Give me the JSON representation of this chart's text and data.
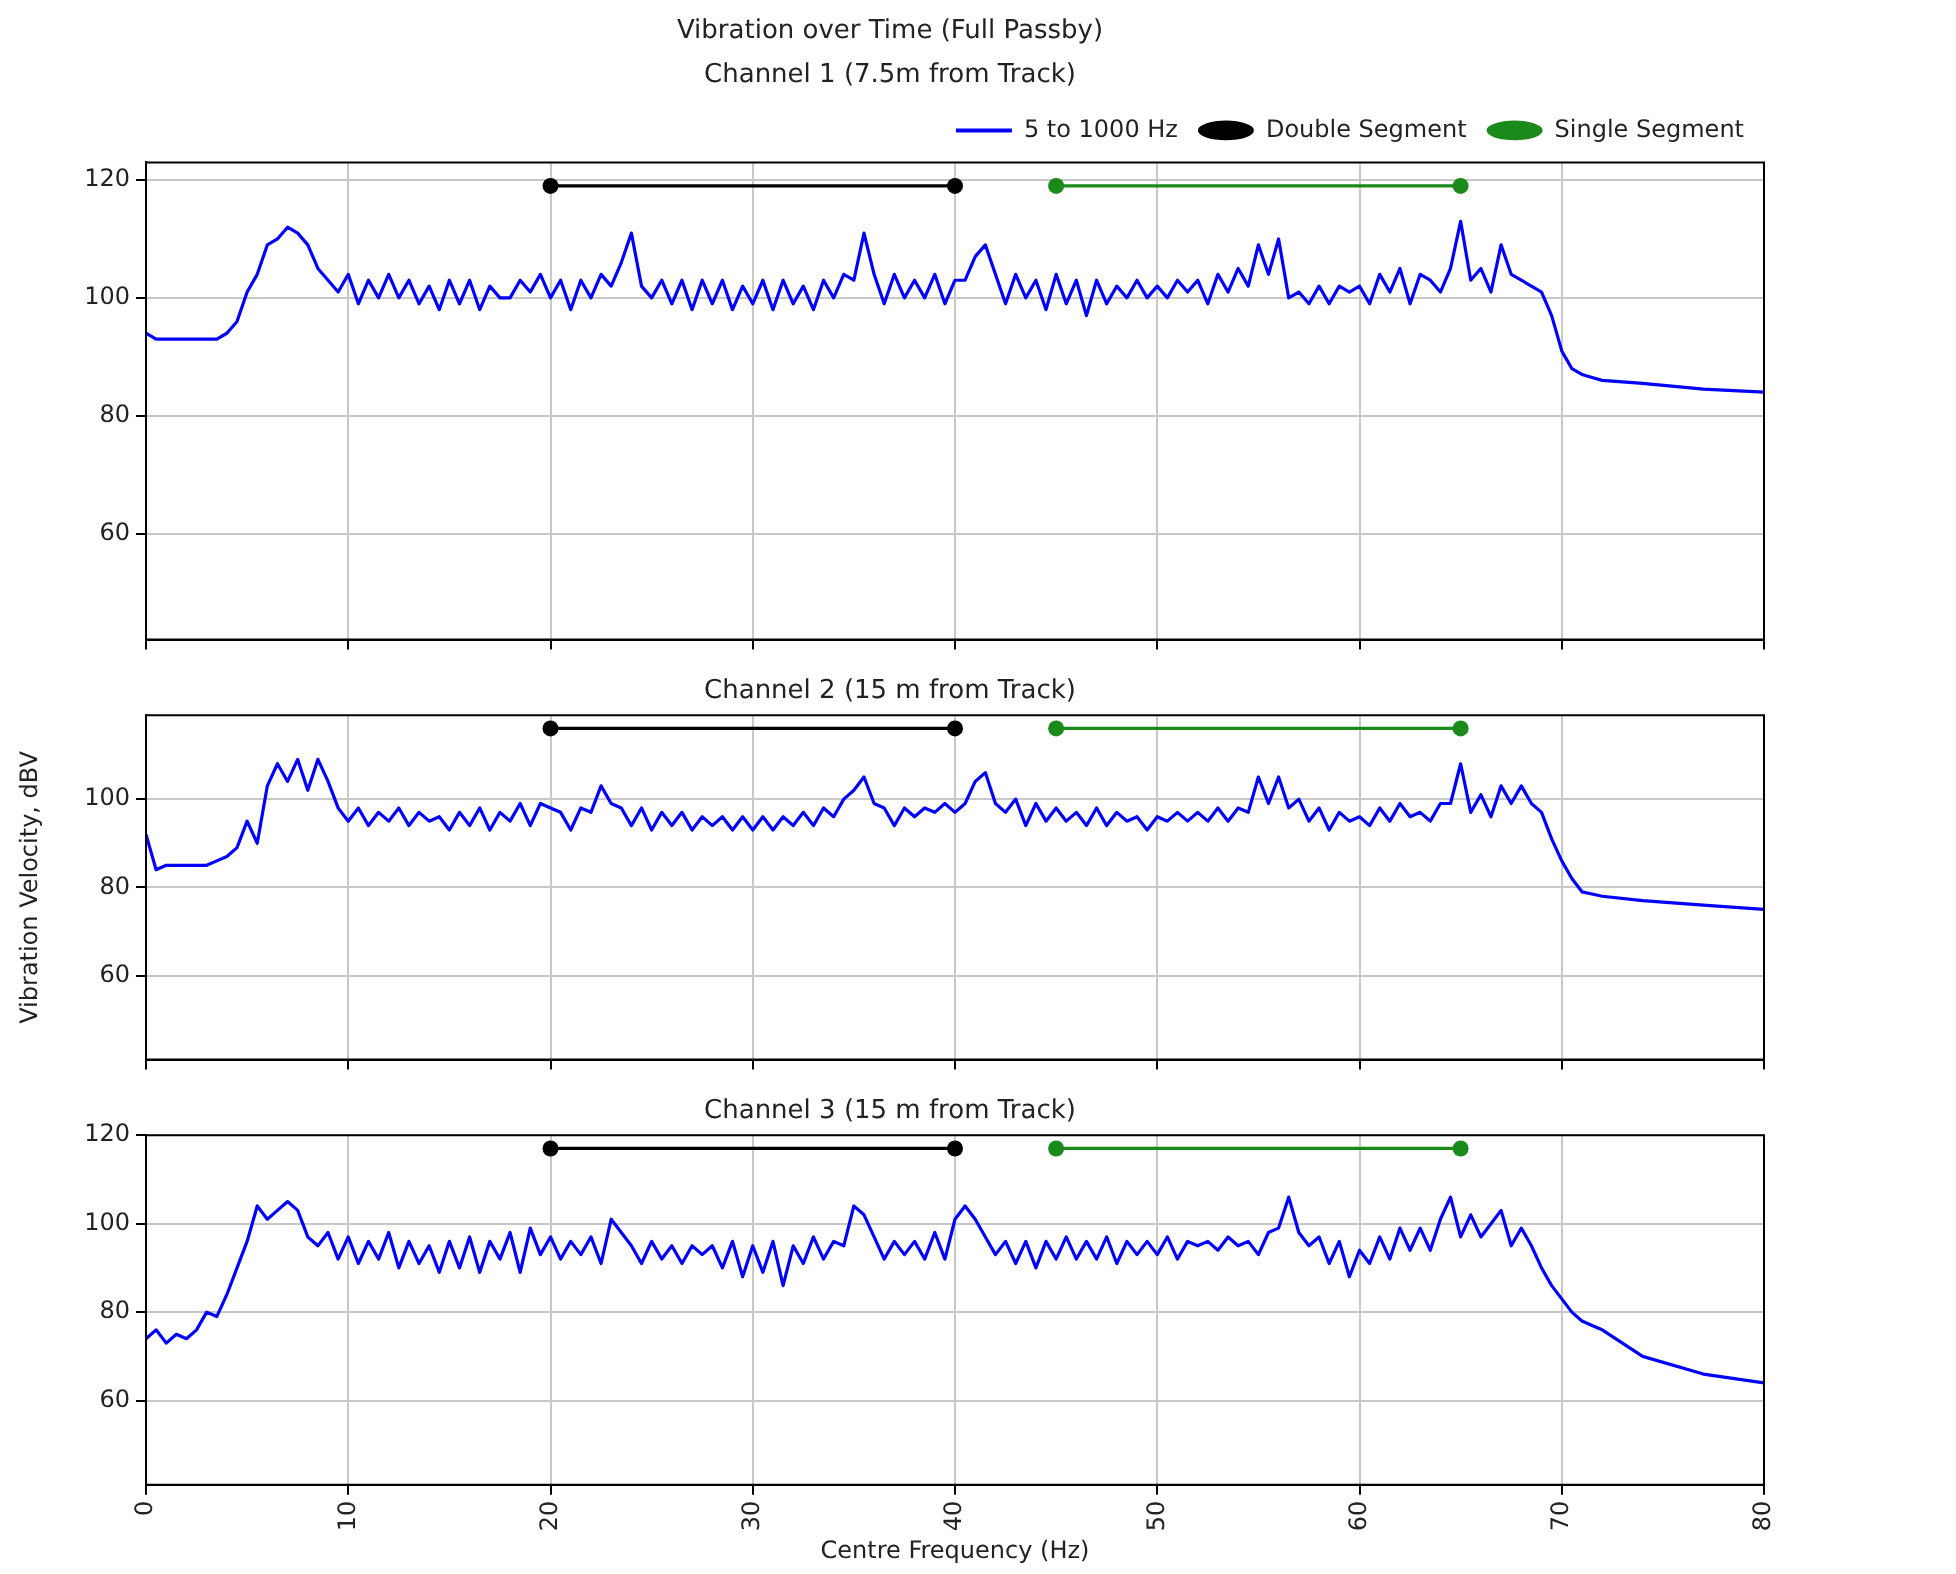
{
  "chart_data": [
    {
      "type": "line",
      "title": "Vibration over Time (Full Passby)",
      "subtitle": "Channel 1 (7.5m from Track)",
      "legend": "top right",
      "grid": true,
      "tick_labels": "y",
      "xlim": [
        0,
        80
      ],
      "xticks": [
        0,
        10,
        20,
        30,
        40,
        50,
        60,
        70,
        80
      ],
      "ylim": [
        42,
        123
      ],
      "yticks": [
        60,
        80,
        100,
        120
      ],
      "x": [
        0,
        0.5,
        1,
        1.5,
        2,
        2.5,
        3,
        3.5,
        4,
        4.5,
        5,
        5.5,
        6,
        6.5,
        7,
        7.5,
        8,
        8.5,
        9,
        9.5,
        10,
        10.5,
        11,
        11.5,
        12,
        12.5,
        13,
        13.5,
        14,
        14.5,
        15,
        15.5,
        16,
        16.5,
        17,
        17.5,
        18,
        18.5,
        19,
        19.5,
        20,
        20.5,
        21,
        21.5,
        22,
        22.5,
        23,
        23.5,
        24,
        24.5,
        25,
        25.5,
        26,
        26.5,
        27,
        27.5,
        28,
        28.5,
        29,
        29.5,
        30,
        30.5,
        31,
        31.5,
        32,
        32.5,
        33,
        33.5,
        34,
        34.5,
        35,
        35.5,
        36,
        36.5,
        37,
        37.5,
        38,
        38.5,
        39,
        39.5,
        40,
        40.5,
        41,
        41.5,
        42,
        42.5,
        43,
        43.5,
        44,
        44.5,
        45,
        45.5,
        46,
        46.5,
        47,
        47.5,
        48,
        48.5,
        49,
        49.5,
        50,
        50.5,
        51,
        51.5,
        52,
        52.5,
        53,
        53.5,
        54,
        54.5,
        55,
        55.5,
        56,
        56.5,
        57,
        57.5,
        58,
        58.5,
        59,
        59.5,
        60,
        60.5,
        61,
        61.5,
        62,
        62.5,
        63,
        63.5,
        64,
        64.5,
        65,
        65.5,
        66,
        66.5,
        67,
        67.5,
        68,
        68.5,
        69,
        69.5,
        70,
        70.5,
        71,
        71.5,
        72,
        74,
        77,
        80
      ],
      "series": [
        {
          "name": "5 to 1000 Hz",
          "color": "#0000ff",
          "marker": "none",
          "values": [
            94,
            93,
            93,
            93,
            93,
            93,
            93,
            93,
            94,
            96,
            101,
            104,
            109,
            110,
            112,
            111,
            109,
            105,
            103,
            101,
            104,
            99,
            103,
            100,
            104,
            100,
            103,
            99,
            102,
            98,
            103,
            99,
            103,
            98,
            102,
            100,
            100,
            103,
            101,
            104,
            100,
            103,
            98,
            103,
            100,
            104,
            102,
            106,
            111,
            102,
            100,
            103,
            99,
            103,
            98,
            103,
            99,
            103,
            98,
            102,
            99,
            103,
            98,
            103,
            99,
            102,
            98,
            103,
            100,
            104,
            103,
            111,
            104,
            99,
            104,
            100,
            103,
            100,
            104,
            99,
            103,
            103,
            107,
            109,
            104,
            99,
            104,
            100,
            103,
            98,
            104,
            99,
            103,
            97,
            103,
            99,
            102,
            100,
            103,
            100,
            102,
            100,
            103,
            101,
            103,
            99,
            104,
            101,
            105,
            102,
            109,
            104,
            110,
            100,
            101,
            99,
            102,
            99,
            102,
            101,
            102,
            99,
            104,
            101,
            105,
            99,
            104,
            103,
            101,
            105,
            113,
            103,
            105,
            101,
            109,
            104,
            103,
            102,
            101,
            97,
            91,
            88,
            87,
            86.5,
            86,
            85.5,
            84.5,
            84
          ]
        },
        {
          "name": "Double Segment",
          "color": "#000000",
          "marker": "circle",
          "x": [
            20,
            40
          ],
          "values": [
            119,
            119
          ]
        },
        {
          "name": "Single Segment",
          "color": "#1a8a1a",
          "marker": "circle",
          "x": [
            45,
            65
          ],
          "values": [
            119,
            119
          ]
        }
      ]
    },
    {
      "type": "line",
      "title": "Channel 2 (15 m from Track)",
      "ylabel": "Vibration Velocity, dBV",
      "grid": true,
      "tick_labels": "y",
      "xlim": [
        0,
        80
      ],
      "xticks": [
        0,
        10,
        20,
        30,
        40,
        50,
        60,
        70,
        80
      ],
      "ylim": [
        41,
        119
      ],
      "yticks": [
        60,
        80,
        100
      ],
      "x": [
        0,
        0.5,
        1,
        1.5,
        2,
        2.5,
        3,
        3.5,
        4,
        4.5,
        5,
        5.5,
        6,
        6.5,
        7,
        7.5,
        8,
        8.5,
        9,
        9.5,
        10,
        10.5,
        11,
        11.5,
        12,
        12.5,
        13,
        13.5,
        14,
        14.5,
        15,
        15.5,
        16,
        16.5,
        17,
        17.5,
        18,
        18.5,
        19,
        19.5,
        20,
        20.5,
        21,
        21.5,
        22,
        22.5,
        23,
        23.5,
        24,
        24.5,
        25,
        25.5,
        26,
        26.5,
        27,
        27.5,
        28,
        28.5,
        29,
        29.5,
        30,
        30.5,
        31,
        31.5,
        32,
        32.5,
        33,
        33.5,
        34,
        34.5,
        35,
        35.5,
        36,
        36.5,
        37,
        37.5,
        38,
        38.5,
        39,
        39.5,
        40,
        40.5,
        41,
        41.5,
        42,
        42.5,
        43,
        43.5,
        44,
        44.5,
        45,
        45.5,
        46,
        46.5,
        47,
        47.5,
        48,
        48.5,
        49,
        49.5,
        50,
        50.5,
        51,
        51.5,
        52,
        52.5,
        53,
        53.5,
        54,
        54.5,
        55,
        55.5,
        56,
        56.5,
        57,
        57.5,
        58,
        58.5,
        59,
        59.5,
        60,
        60.5,
        61,
        61.5,
        62,
        62.5,
        63,
        63.5,
        64,
        64.5,
        65,
        65.5,
        66,
        66.5,
        67,
        67.5,
        68,
        68.5,
        69,
        69.5,
        70,
        70.5,
        71,
        71.5,
        72,
        74,
        77,
        80
      ],
      "series": [
        {
          "color": "#0000ff",
          "marker": "none",
          "values": [
            92,
            84,
            85,
            85,
            85,
            85,
            85,
            86,
            87,
            89,
            95,
            90,
            103,
            108,
            104,
            109,
            102,
            109,
            104,
            98,
            95,
            98,
            94,
            97,
            95,
            98,
            94,
            97,
            95,
            96,
            93,
            97,
            94,
            98,
            93,
            97,
            95,
            99,
            94,
            99,
            98,
            97,
            93,
            98,
            97,
            103,
            99,
            98,
            94,
            98,
            93,
            97,
            94,
            97,
            93,
            96,
            94,
            96,
            93,
            96,
            93,
            96,
            93,
            96,
            94,
            97,
            94,
            98,
            96,
            100,
            102,
            105,
            99,
            98,
            94,
            98,
            96,
            98,
            97,
            99,
            97,
            99,
            104,
            106,
            99,
            97,
            100,
            94,
            99,
            95,
            98,
            95,
            97,
            94,
            98,
            94,
            97,
            95,
            96,
            93,
            96,
            95,
            97,
            95,
            97,
            95,
            98,
            95,
            98,
            97,
            105,
            99,
            105,
            98,
            100,
            95,
            98,
            93,
            97,
            95,
            96,
            94,
            98,
            95,
            99,
            96,
            97,
            95,
            99,
            99,
            108,
            97,
            101,
            96,
            103,
            99,
            103,
            99,
            97,
            91,
            86,
            82,
            79,
            78.5,
            78,
            77,
            76,
            75
          ]
        },
        {
          "color": "#000000",
          "marker": "circle",
          "x": [
            20,
            40
          ],
          "values": [
            116,
            116
          ]
        },
        {
          "color": "#1a8a1a",
          "marker": "circle",
          "x": [
            45,
            65
          ],
          "values": [
            116,
            116
          ]
        }
      ]
    },
    {
      "type": "line",
      "title": "Channel 3 (15 m from Track)",
      "xlabel": "Centre Frequency (Hz)",
      "grid": true,
      "xlim": [
        0,
        80
      ],
      "xticks": [
        0,
        10,
        20,
        30,
        40,
        50,
        60,
        70,
        80
      ],
      "ylim": [
        41,
        120
      ],
      "yticks": [
        60,
        80,
        100,
        120
      ],
      "x": [
        0,
        0.5,
        1,
        1.5,
        2,
        2.5,
        3,
        3.5,
        4,
        4.5,
        5,
        5.5,
        6,
        6.5,
        7,
        7.5,
        8,
        8.5,
        9,
        9.5,
        10,
        10.5,
        11,
        11.5,
        12,
        12.5,
        13,
        13.5,
        14,
        14.5,
        15,
        15.5,
        16,
        16.5,
        17,
        17.5,
        18,
        18.5,
        19,
        19.5,
        20,
        20.5,
        21,
        21.5,
        22,
        22.5,
        23,
        23.5,
        24,
        24.5,
        25,
        25.5,
        26,
        26.5,
        27,
        27.5,
        28,
        28.5,
        29,
        29.5,
        30,
        30.5,
        31,
        31.5,
        32,
        32.5,
        33,
        33.5,
        34,
        34.5,
        35,
        35.5,
        36,
        36.5,
        37,
        37.5,
        38,
        38.5,
        39,
        39.5,
        40,
        40.5,
        41,
        41.5,
        42,
        42.5,
        43,
        43.5,
        44,
        44.5,
        45,
        45.5,
        46,
        46.5,
        47,
        47.5,
        48,
        48.5,
        49,
        49.5,
        50,
        50.5,
        51,
        51.5,
        52,
        52.5,
        53,
        53.5,
        54,
        54.5,
        55,
        55.5,
        56,
        56.5,
        57,
        57.5,
        58,
        58.5,
        59,
        59.5,
        60,
        60.5,
        61,
        61.5,
        62,
        62.5,
        63,
        63.5,
        64,
        64.5,
        65,
        65.5,
        66,
        66.5,
        67,
        67.5,
        68,
        68.5,
        69,
        69.5,
        70,
        70.5,
        71,
        71.5,
        72,
        74,
        77,
        80
      ],
      "series": [
        {
          "color": "#0000ff",
          "marker": "none",
          "values": [
            74,
            76,
            73,
            75,
            74,
            76,
            80,
            79,
            84,
            90,
            96,
            104,
            101,
            103,
            105,
            103,
            97,
            95,
            98,
            92,
            97,
            91,
            96,
            92,
            98,
            90,
            96,
            91,
            95,
            89,
            96,
            90,
            97,
            89,
            96,
            92,
            98,
            89,
            99,
            93,
            97,
            92,
            96,
            93,
            97,
            91,
            101,
            98,
            95,
            91,
            96,
            92,
            95,
            91,
            95,
            93,
            95,
            90,
            96,
            88,
            95,
            89,
            96,
            86,
            95,
            91,
            97,
            92,
            96,
            95,
            104,
            102,
            97,
            92,
            96,
            93,
            96,
            92,
            98,
            92,
            101,
            104,
            101,
            97,
            93,
            96,
            91,
            96,
            90,
            96,
            92,
            97,
            92,
            96,
            92,
            97,
            91,
            96,
            93,
            96,
            93,
            97,
            92,
            96,
            95,
            96,
            94,
            97,
            95,
            96,
            93,
            98,
            99,
            106,
            98,
            95,
            97,
            91,
            96,
            88,
            94,
            91,
            97,
            92,
            99,
            94,
            99,
            94,
            101,
            106,
            97,
            102,
            97,
            100,
            103,
            95,
            99,
            95,
            90,
            86,
            83,
            80,
            78,
            77,
            76,
            70,
            66,
            64
          ]
        },
        {
          "color": "#000000",
          "marker": "circle",
          "x": [
            20,
            40
          ],
          "values": [
            117,
            117
          ]
        },
        {
          "color": "#1a8a1a",
          "marker": "circle",
          "x": [
            45,
            65
          ],
          "values": [
            117,
            117
          ]
        }
      ]
    }
  ]
}
